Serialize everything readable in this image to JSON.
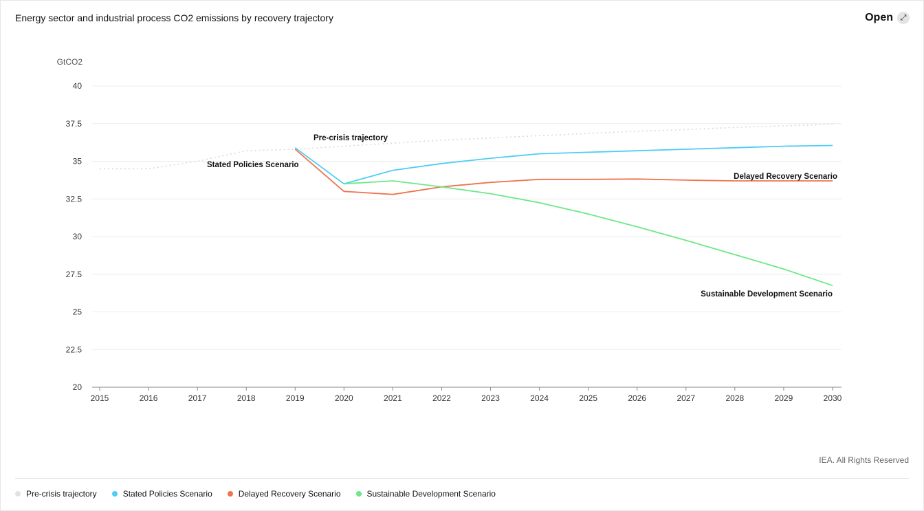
{
  "header": {
    "title": "Energy sector and industrial process CO2 emissions by recovery trajectory",
    "open_label": "Open",
    "open_icon": "expand-icon"
  },
  "credit": "IEA. All Rights Reserved",
  "chart_data": {
    "type": "line",
    "title": "Energy sector and industrial process CO2 emissions by recovery trajectory",
    "ylabel": "GtCO2",
    "xlabel": "",
    "ylim": [
      20,
      40
    ],
    "yticks": [
      "20",
      "22.5",
      "25",
      "27.5",
      "30",
      "32.5",
      "35",
      "37.5",
      "40"
    ],
    "x": [
      "2015",
      "2016",
      "2017",
      "2018",
      "2019",
      "2020",
      "2021",
      "2022",
      "2023",
      "2024",
      "2025",
      "2026",
      "2027",
      "2028",
      "2029",
      "2030"
    ],
    "grid": true,
    "legend_position": "bottom",
    "series": [
      {
        "name": "Pre-crisis trajectory",
        "color": "#d9d9d9",
        "style": "dotted",
        "values": [
          34.5,
          34.5,
          35.0,
          35.7,
          35.8,
          36.0,
          36.2,
          36.4,
          36.55,
          36.7,
          36.85,
          37.0,
          37.1,
          37.25,
          37.35,
          37.45
        ]
      },
      {
        "name": "Stated Policies Scenario",
        "color": "#4ecdf5",
        "style": "solid",
        "values": [
          null,
          null,
          null,
          null,
          35.9,
          33.5,
          34.4,
          34.85,
          35.2,
          35.5,
          35.6,
          35.7,
          35.8,
          35.9,
          36.0,
          36.05
        ]
      },
      {
        "name": "Delayed Recovery Scenario",
        "color": "#f0724e",
        "style": "solid",
        "values": [
          null,
          null,
          null,
          null,
          35.8,
          33.0,
          32.8,
          33.3,
          33.6,
          33.8,
          33.8,
          33.82,
          33.75,
          33.7,
          33.7,
          33.7
        ]
      },
      {
        "name": "Sustainable Development Scenario",
        "color": "#6ce888",
        "style": "solid",
        "values": [
          null,
          null,
          null,
          null,
          null,
          33.5,
          33.7,
          33.3,
          32.85,
          32.25,
          31.5,
          30.65,
          29.75,
          28.8,
          27.85,
          26.75
        ]
      }
    ],
    "annotations": [
      "Pre-crisis trajectory",
      "Stated Policies Scenario",
      "Delayed Recovery Scenario",
      "Sustainable Development Scenario"
    ]
  }
}
